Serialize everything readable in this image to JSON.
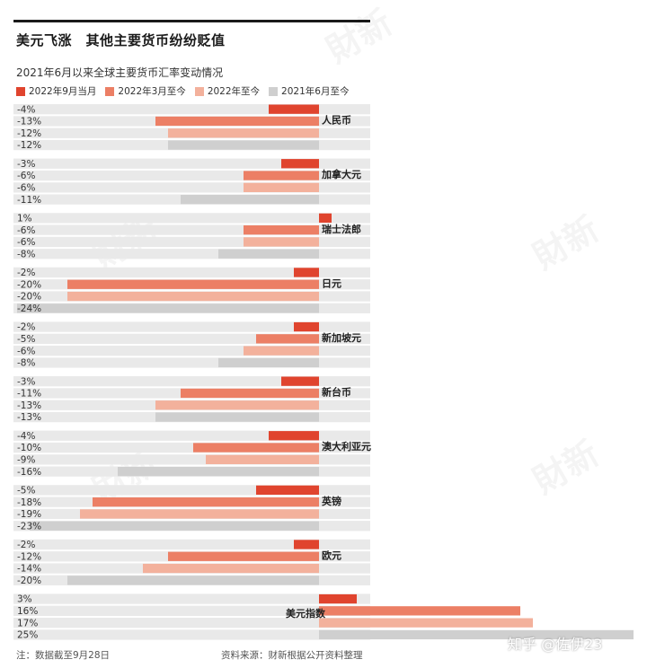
{
  "header": {
    "title": "美元飞涨　其他主要货币纷纷贬值",
    "subtitle": "2021年6月以来全球主要货币汇率变动情况"
  },
  "footer": {
    "note": "注：数据截至9月28日",
    "source": "资料来源：财新根据公开资料整理"
  },
  "watermark": {
    "text": "知乎 @佐伊23",
    "brand": "财新"
  },
  "colors": {
    "s1": "#e0442e",
    "s2": "#ec7f65",
    "s3": "#f3b19c",
    "s4": "#cfcfcf",
    "track": "#e9e9e9"
  },
  "chart_data": {
    "type": "bar",
    "orientation": "horizontal",
    "categories": [
      "人民币",
      "加拿大元",
      "瑞士法郎",
      "日元",
      "新加坡元",
      "新台币",
      "澳大利亚元",
      "英镑",
      "欧元",
      "美元指数"
    ],
    "series": [
      {
        "name": "2022年9月当月",
        "values": [
          -4,
          -3,
          1,
          -2,
          -2,
          -3,
          -4,
          -5,
          -2,
          3
        ]
      },
      {
        "name": "2022年3月至今",
        "values": [
          -13,
          -6,
          -6,
          -20,
          -5,
          -11,
          -10,
          -18,
          -12,
          16
        ]
      },
      {
        "name": "2022年至今",
        "values": [
          -12,
          -6,
          -6,
          -20,
          -6,
          -13,
          -9,
          -19,
          -14,
          17
        ]
      },
      {
        "name": "2021年6月至今",
        "values": [
          -12,
          -11,
          -8,
          -24,
          -8,
          -13,
          -16,
          -23,
          -20,
          25
        ]
      }
    ],
    "value_labels": [
      [
        "-4%",
        "-13%",
        "-12%",
        "-12%"
      ],
      [
        "-3%",
        "-6%",
        "-6%",
        "-11%"
      ],
      [
        "1%",
        "-6%",
        "-6%",
        "-8%"
      ],
      [
        "-2%",
        "-20%",
        "-20%",
        "-24%"
      ],
      [
        "-2%",
        "-5%",
        "-6%",
        "-8%"
      ],
      [
        "-3%",
        "-11%",
        "-13%",
        "-13%"
      ],
      [
        "-4%",
        "-10%",
        "-9%",
        "-16%"
      ],
      [
        "-5%",
        "-18%",
        "-19%",
        "-23%"
      ],
      [
        "-2%",
        "-12%",
        "-14%",
        "-20%"
      ],
      [
        "3%",
        "16%",
        "17%",
        "25%"
      ]
    ],
    "unit": "%",
    "grid": false,
    "legend_position": "top-left"
  }
}
